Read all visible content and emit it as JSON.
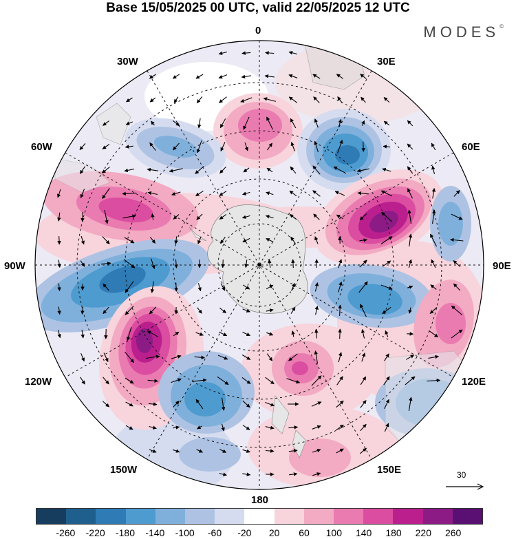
{
  "title": "Base 15/05/2025 00 UTC, valid 22/05/2025 12 UTC",
  "brand": "MODES",
  "brand_mark": "©",
  "lon_labels": {
    "l0": "0",
    "l30e": "30E",
    "l60e": "60E",
    "l90e": "90E",
    "l120e": "120E",
    "l150e": "150E",
    "l180": "180",
    "l150w": "150W",
    "l120w": "120W",
    "l90w": "90W",
    "l60w": "60W",
    "l30w": "30W"
  },
  "wind_scale": {
    "value": "30"
  },
  "colorbar": {
    "ticks": [
      "-260",
      "-220",
      "-180",
      "-140",
      "-100",
      "-60",
      "-20",
      "20",
      "60",
      "100",
      "140",
      "180",
      "220",
      "260"
    ],
    "colors": [
      "#173d5e",
      "#1f5f8d",
      "#2e7bb6",
      "#4e9bd0",
      "#7fb0dc",
      "#aec3e3",
      "#d6dcef",
      "#ffffff",
      "#f8d4dc",
      "#f3aac3",
      "#ea7bb0",
      "#db4da0",
      "#bb1f8e",
      "#8c1b86",
      "#5a0f73"
    ]
  },
  "anomaly_blobs": [
    {
      "name": "blue-30e",
      "color": "#2e7bb6",
      "level": -180
    },
    {
      "name": "magenta-60e",
      "color": "#8c1b86",
      "level": 220
    },
    {
      "name": "blue-90w",
      "color": "#4e9bd0",
      "level": -140
    },
    {
      "name": "magenta-120w",
      "color": "#8c1b86",
      "level": 220
    }
  ],
  "icons": {
    "arrow": "wind-vector-icon",
    "pole": "south-pole-marker-icon"
  }
}
